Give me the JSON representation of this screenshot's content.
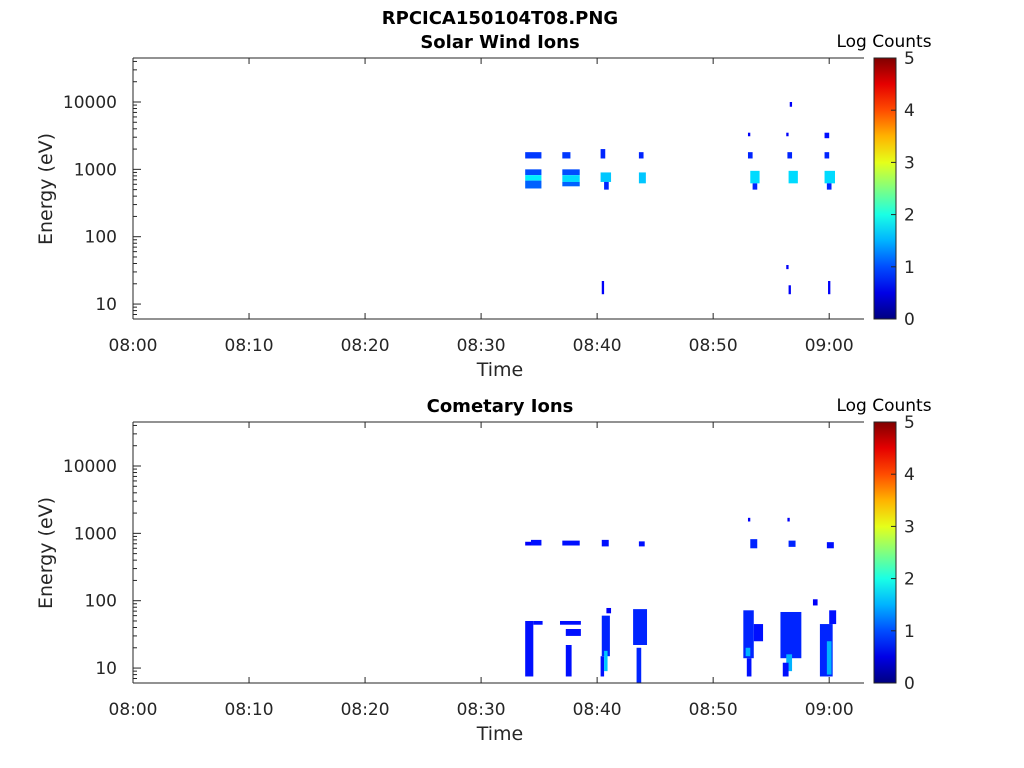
{
  "figure_title": "RPCICA150104T08.PNG",
  "chart_data": [
    {
      "type": "heatmap",
      "title": "Solar Wind Ions",
      "xlabel": "Time",
      "ylabel": "Energy (eV)",
      "x_ticks": [
        "08:00",
        "08:10",
        "08:20",
        "08:30",
        "08:40",
        "08:50",
        "09:00"
      ],
      "xlim_minutes_after_0800": [
        0,
        63
      ],
      "y_ticks": [
        "10",
        "100",
        "1000",
        "10000"
      ],
      "y_scale": "log",
      "ylim": [
        6,
        45000
      ],
      "colorbar": {
        "label": "Log Counts",
        "ticks": [
          "0",
          "1",
          "2",
          "3",
          "4",
          "5"
        ],
        "range": [
          0,
          5
        ],
        "colormap": "jet"
      },
      "cells": [
        {
          "t0": 33.8,
          "t1": 35.2,
          "e0": 1450,
          "e1": 1800,
          "v": 0.9
        },
        {
          "t0": 33.8,
          "t1": 35.2,
          "e0": 820,
          "e1": 1000,
          "v": 1.0
        },
        {
          "t0": 33.8,
          "t1": 35.2,
          "e0": 680,
          "e1": 820,
          "v": 1.8
        },
        {
          "t0": 33.8,
          "t1": 35.2,
          "e0": 520,
          "e1": 680,
          "v": 1.1
        },
        {
          "t0": 37.0,
          "t1": 37.7,
          "e0": 1450,
          "e1": 1800,
          "v": 0.9
        },
        {
          "t0": 37.0,
          "t1": 38.5,
          "e0": 820,
          "e1": 1000,
          "v": 1.0
        },
        {
          "t0": 37.0,
          "t1": 38.5,
          "e0": 650,
          "e1": 820,
          "v": 1.7
        },
        {
          "t0": 37.0,
          "t1": 38.5,
          "e0": 560,
          "e1": 650,
          "v": 1.1
        },
        {
          "t0": 40.3,
          "t1": 40.7,
          "e0": 1450,
          "e1": 2000,
          "v": 0.8
        },
        {
          "t0": 40.3,
          "t1": 41.2,
          "e0": 650,
          "e1": 900,
          "v": 1.6
        },
        {
          "t0": 40.6,
          "t1": 41.0,
          "e0": 500,
          "e1": 650,
          "v": 0.8
        },
        {
          "t0": 40.4,
          "t1": 40.6,
          "e0": 14,
          "e1": 22,
          "v": 0.6
        },
        {
          "t0": 43.6,
          "t1": 44.0,
          "e0": 1450,
          "e1": 1800,
          "v": 0.8
        },
        {
          "t0": 43.6,
          "t1": 44.2,
          "e0": 620,
          "e1": 900,
          "v": 1.6
        },
        {
          "t0": 53.0,
          "t1": 53.2,
          "e0": 3100,
          "e1": 3500,
          "v": 0.6
        },
        {
          "t0": 53.0,
          "t1": 53.4,
          "e0": 1450,
          "e1": 1800,
          "v": 0.8
        },
        {
          "t0": 53.2,
          "t1": 54.0,
          "e0": 620,
          "e1": 950,
          "v": 1.7
        },
        {
          "t0": 53.4,
          "t1": 53.8,
          "e0": 500,
          "e1": 620,
          "v": 0.8
        },
        {
          "t0": 56.3,
          "t1": 56.5,
          "e0": 3100,
          "e1": 3500,
          "v": 0.6
        },
        {
          "t0": 56.4,
          "t1": 56.8,
          "e0": 1450,
          "e1": 1800,
          "v": 0.8
        },
        {
          "t0": 56.5,
          "t1": 57.3,
          "e0": 620,
          "e1": 950,
          "v": 1.7
        },
        {
          "t0": 56.6,
          "t1": 56.8,
          "e0": 8500,
          "e1": 10000,
          "v": 0.6
        },
        {
          "t0": 56.3,
          "t1": 56.5,
          "e0": 33,
          "e1": 38,
          "v": 0.6
        },
        {
          "t0": 56.5,
          "t1": 56.7,
          "e0": 14,
          "e1": 19,
          "v": 0.6
        },
        {
          "t0": 59.6,
          "t1": 60.0,
          "e0": 2900,
          "e1": 3500,
          "v": 0.7
        },
        {
          "t0": 59.6,
          "t1": 60.0,
          "e0": 1450,
          "e1": 1800,
          "v": 0.8
        },
        {
          "t0": 59.6,
          "t1": 60.5,
          "e0": 620,
          "e1": 950,
          "v": 1.7
        },
        {
          "t0": 59.8,
          "t1": 60.2,
          "e0": 500,
          "e1": 620,
          "v": 0.8
        },
        {
          "t0": 59.9,
          "t1": 60.1,
          "e0": 14,
          "e1": 22,
          "v": 0.6
        }
      ]
    },
    {
      "type": "heatmap",
      "title": "Cometary Ions",
      "xlabel": "Time",
      "ylabel": "Energy (eV)",
      "x_ticks": [
        "08:00",
        "08:10",
        "08:20",
        "08:30",
        "08:40",
        "08:50",
        "09:00"
      ],
      "xlim_minutes_after_0800": [
        0,
        63
      ],
      "y_ticks": [
        "10",
        "100",
        "1000",
        "10000"
      ],
      "y_scale": "log",
      "ylim": [
        6,
        45000
      ],
      "colorbar": {
        "label": "Log Counts",
        "ticks": [
          "0",
          "1",
          "2",
          "3",
          "4",
          "5"
        ],
        "range": [
          0,
          5
        ],
        "colormap": "jet"
      },
      "cells": [
        {
          "t0": 33.8,
          "t1": 34.5,
          "e0": 660,
          "e1": 750,
          "v": 0.6
        },
        {
          "t0": 34.3,
          "t1": 35.2,
          "e0": 660,
          "e1": 800,
          "v": 0.7
        },
        {
          "t0": 37.0,
          "t1": 38.5,
          "e0": 660,
          "e1": 780,
          "v": 0.7
        },
        {
          "t0": 40.4,
          "t1": 41.0,
          "e0": 640,
          "e1": 800,
          "v": 0.7
        },
        {
          "t0": 43.6,
          "t1": 44.1,
          "e0": 640,
          "e1": 760,
          "v": 0.7
        },
        {
          "t0": 53.0,
          "t1": 53.2,
          "e0": 1500,
          "e1": 1700,
          "v": 0.6
        },
        {
          "t0": 53.2,
          "t1": 53.8,
          "e0": 600,
          "e1": 820,
          "v": 0.8
        },
        {
          "t0": 56.4,
          "t1": 56.6,
          "e0": 1500,
          "e1": 1700,
          "v": 0.6
        },
        {
          "t0": 56.5,
          "t1": 57.1,
          "e0": 630,
          "e1": 780,
          "v": 0.8
        },
        {
          "t0": 59.8,
          "t1": 60.4,
          "e0": 600,
          "e1": 740,
          "v": 0.7
        },
        {
          "t0": 33.8,
          "t1": 34.5,
          "e0": 7.5,
          "e1": 50,
          "v": 0.7
        },
        {
          "t0": 34.5,
          "t1": 35.3,
          "e0": 44,
          "e1": 50,
          "v": 0.7
        },
        {
          "t0": 36.8,
          "t1": 38.6,
          "e0": 44,
          "e1": 50,
          "v": 0.7
        },
        {
          "t0": 37.3,
          "t1": 38.6,
          "e0": 30,
          "e1": 38,
          "v": 0.7
        },
        {
          "t0": 37.3,
          "t1": 37.8,
          "e0": 7.5,
          "e1": 22,
          "v": 0.7
        },
        {
          "t0": 40.3,
          "t1": 40.6,
          "e0": 7.5,
          "e1": 15,
          "v": 0.7
        },
        {
          "t0": 40.4,
          "t1": 41.1,
          "e0": 15,
          "e1": 60,
          "v": 0.8
        },
        {
          "t0": 40.6,
          "t1": 40.9,
          "e0": 9,
          "e1": 18,
          "v": 1.6
        },
        {
          "t0": 40.8,
          "t1": 41.2,
          "e0": 65,
          "e1": 78,
          "v": 0.6
        },
        {
          "t0": 43.1,
          "t1": 44.3,
          "e0": 22,
          "e1": 75,
          "v": 0.8
        },
        {
          "t0": 43.4,
          "t1": 43.8,
          "e0": 6,
          "e1": 20,
          "v": 0.8
        },
        {
          "t0": 52.6,
          "t1": 53.5,
          "e0": 14,
          "e1": 72,
          "v": 0.8
        },
        {
          "t0": 52.8,
          "t1": 53.2,
          "e0": 15,
          "e1": 20,
          "v": 1.5
        },
        {
          "t0": 52.9,
          "t1": 53.3,
          "e0": 7.5,
          "e1": 14,
          "v": 0.7
        },
        {
          "t0": 53.5,
          "t1": 54.3,
          "e0": 25,
          "e1": 45,
          "v": 0.7
        },
        {
          "t0": 55.8,
          "t1": 57.6,
          "e0": 14,
          "e1": 68,
          "v": 0.8
        },
        {
          "t0": 56.3,
          "t1": 56.8,
          "e0": 9,
          "e1": 16,
          "v": 1.5
        },
        {
          "t0": 56.0,
          "t1": 56.5,
          "e0": 7.5,
          "e1": 12,
          "v": 0.7
        },
        {
          "t0": 58.6,
          "t1": 59.0,
          "e0": 85,
          "e1": 105,
          "v": 0.6
        },
        {
          "t0": 59.2,
          "t1": 60.3,
          "e0": 7.5,
          "e1": 45,
          "v": 0.8
        },
        {
          "t0": 59.8,
          "t1": 60.2,
          "e0": 8,
          "e1": 25,
          "v": 1.5
        },
        {
          "t0": 60.0,
          "t1": 60.6,
          "e0": 45,
          "e1": 72,
          "v": 0.7
        }
      ]
    }
  ]
}
